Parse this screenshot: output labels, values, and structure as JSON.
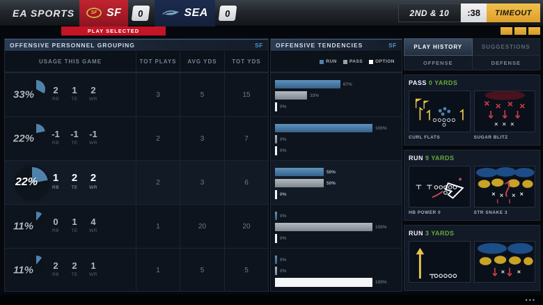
{
  "colors": {
    "accent_blue": "#4f82ab",
    "run_bar": "#4f82ab",
    "pass_bar": "#9aa1a9",
    "option_bar": "#ffffff",
    "result_green": "#67ab3c",
    "alert_red": "#c41426",
    "timeout_yellow": "#e8b23d"
  },
  "scoreboard": {
    "brand": "EA SPORTS",
    "home_abbr": "SF",
    "home_score": "0",
    "away_abbr": "SEA",
    "away_score": "0",
    "play_selected_label": "PLAY SELECTED",
    "down_distance": "2ND & 10",
    "play_clock": ":38",
    "timeout_label": "TIMEOUT",
    "timeouts_remaining": 3
  },
  "personnel": {
    "title": "OFFENSIVE PERSONNEL GROUPING",
    "team": "SF",
    "columns": [
      "USAGE THIS GAME",
      "TOT PLAYS",
      "AVG YDS",
      "TOT YDS"
    ],
    "position_labels": [
      "RB",
      "TE",
      "WR"
    ],
    "rows": [
      {
        "usage_pct": "33%",
        "pct": 33,
        "rb": "2",
        "te": "1",
        "wr": "2",
        "tot_plays": "3",
        "avg_yds": "5",
        "tot_yds": "15"
      },
      {
        "usage_pct": "22%",
        "pct": 22,
        "rb": "-1",
        "te": "-1",
        "wr": "-1",
        "tot_plays": "2",
        "avg_yds": "3",
        "tot_yds": "7"
      },
      {
        "usage_pct": "22%",
        "pct": 22,
        "rb": "1",
        "te": "2",
        "wr": "2",
        "tot_plays": "2",
        "avg_yds": "3",
        "tot_yds": "6",
        "selected": true
      },
      {
        "usage_pct": "11%",
        "pct": 11,
        "rb": "0",
        "te": "1",
        "wr": "4",
        "tot_plays": "1",
        "avg_yds": "20",
        "tot_yds": "20"
      },
      {
        "usage_pct": "11%",
        "pct": 11,
        "rb": "2",
        "te": "2",
        "wr": "1",
        "tot_plays": "1",
        "avg_yds": "5",
        "tot_yds": "5"
      }
    ]
  },
  "tendencies": {
    "title": "OFFENSIVE TENDENCIES",
    "team": "SF"
  },
  "chart_data": {
    "type": "bar",
    "orientation": "horizontal",
    "title": "OFFENSIVE TENDENCIES",
    "legend_position": "top",
    "categories": [
      "2RB 1TE 2WR (33%)",
      "-1RB -1TE -1WR (22%)",
      "1RB 2TE 2WR (22%)",
      "0RB 1TE 4WR (11%)",
      "2RB 2TE 1WR (11%)"
    ],
    "series": [
      {
        "name": "RUN",
        "color": "#4f82ab",
        "values": [
          67,
          100,
          50,
          0,
          0
        ]
      },
      {
        "name": "PASS",
        "color": "#9aa1a9",
        "values": [
          33,
          0,
          50,
          100,
          0
        ]
      },
      {
        "name": "OPTION",
        "color": "#ffffff",
        "values": [
          0,
          0,
          0,
          0,
          100
        ]
      }
    ],
    "value_labels": [
      [
        "67%",
        "33%",
        "0%"
      ],
      [
        "100%",
        "0%",
        "0%"
      ],
      [
        "50%",
        "50%",
        "0%"
      ],
      [
        "0%",
        "100%",
        "0%"
      ],
      [
        "0%",
        "0%",
        "100%"
      ]
    ],
    "xlim": [
      0,
      100
    ]
  },
  "play_history": {
    "tab_active": "PLAY HISTORY",
    "tab_inactive": "SUGGESTIONS",
    "subtab_left": "OFFENSE",
    "subtab_right": "DEFENSE",
    "sections": [
      {
        "type": "PASS",
        "result": "0 YARDS",
        "play_left": "CURL FLATS",
        "play_right": "SUGAR BLITZ"
      },
      {
        "type": "RUN",
        "result": "9 YARDS",
        "play_left": "HB POWER 0",
        "play_right": "STR SNAKE 3"
      },
      {
        "type": "RUN",
        "result": "3 YARDS",
        "play_left": "",
        "play_right": ""
      }
    ]
  },
  "footer": {
    "more_indicator": "•••"
  }
}
